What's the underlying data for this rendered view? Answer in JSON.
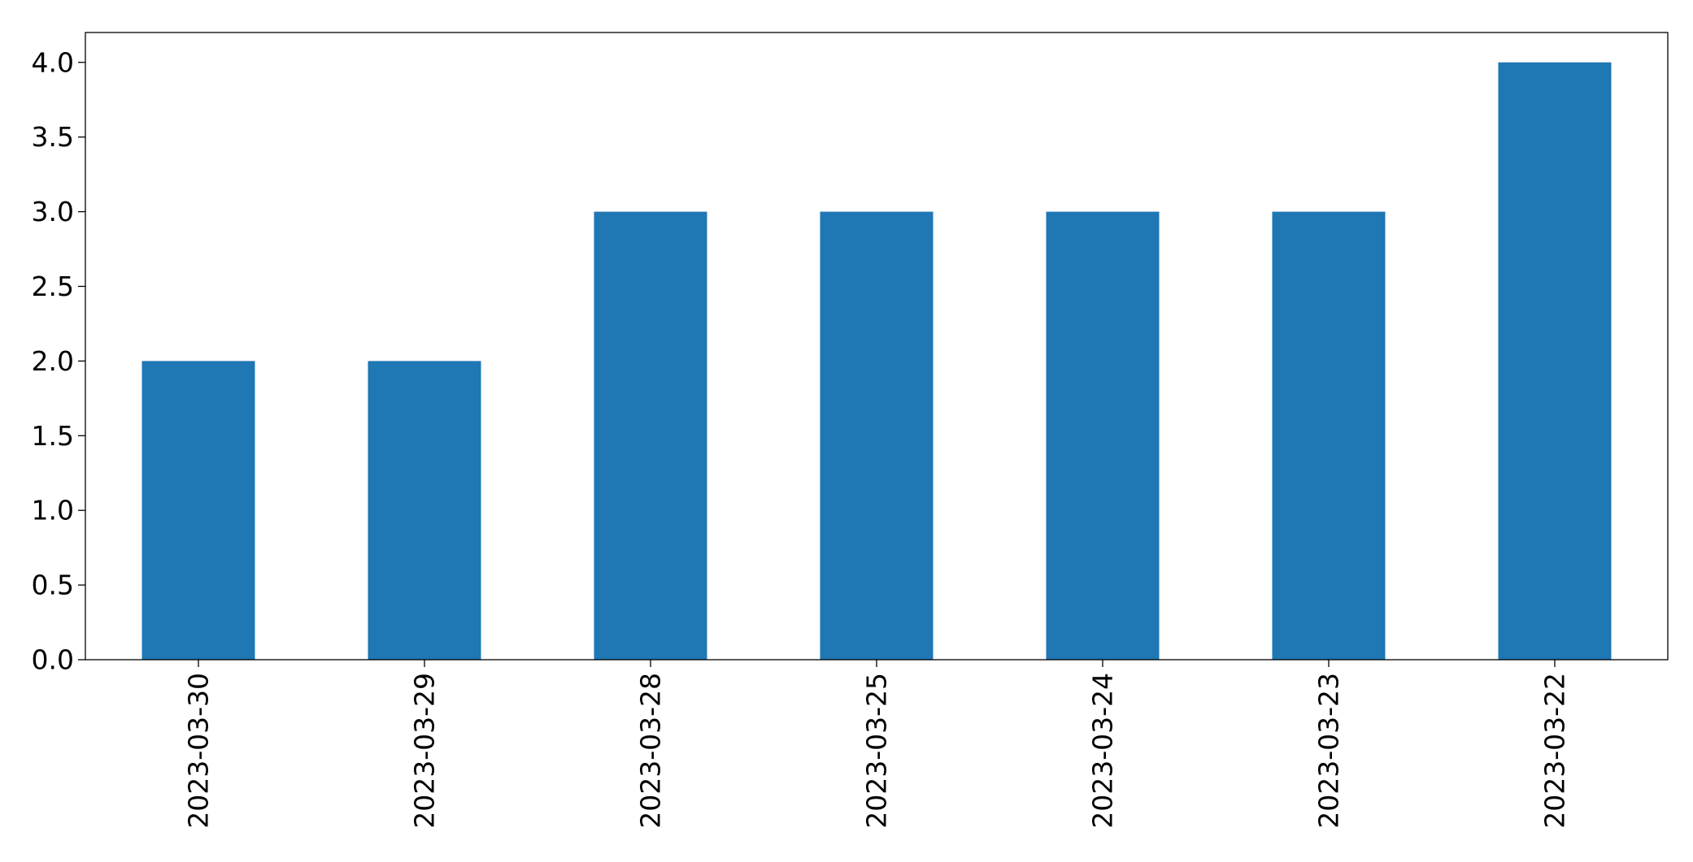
{
  "chart_data": {
    "type": "bar",
    "categories": [
      "2023-03-30",
      "2023-03-29",
      "2023-03-28",
      "2023-03-25",
      "2023-03-24",
      "2023-03-23",
      "2023-03-22"
    ],
    "values": [
      2,
      2,
      3,
      3,
      3,
      3,
      4
    ],
    "title": "",
    "xlabel": "",
    "ylabel": "",
    "ylim": [
      0,
      4.2
    ],
    "yticks": [
      "0.0",
      "0.5",
      "1.0",
      "1.5",
      "2.0",
      "2.5",
      "3.0",
      "3.5",
      "4.0"
    ],
    "grid": false,
    "legend": "none",
    "colors": {
      "bar": "#1f77b4",
      "axis": "#000000"
    }
  }
}
